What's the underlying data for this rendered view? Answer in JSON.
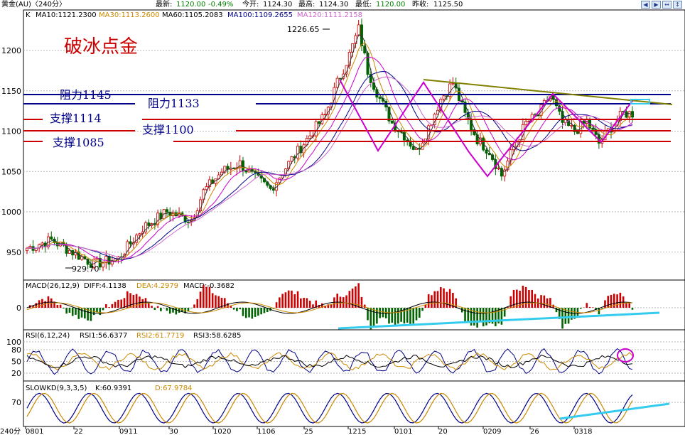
{
  "header": {
    "symbol": "黄金(AU)〈240分〉",
    "latest_label": "最新:",
    "latest_value": "1120.00",
    "change": "-0.49%",
    "open_label": "今开:",
    "open_value": "1124.30",
    "high_label": "最高:",
    "high_value": "1124.30",
    "low_label": "最低:",
    "low_value": "1120.00",
    "prev_label": "昨收:",
    "prev_value": "1125.50"
  },
  "indicators": {
    "k": "K",
    "ma10": "MA10:1121.2300",
    "ma30": "MA30:1113.2600",
    "ma60": "MA60:1105.2083",
    "ma100": "MA100:1109.2655",
    "ma120": "MA120:1111.2158",
    "macd_label": "MACD(26,12,9)",
    "diff": "DIFF:4.1138",
    "dea": "DEA:4.2979",
    "macd_val": "MACD:-0.3682",
    "rsi_label": "RSI(6,12,24)",
    "rsi1": "RSI1:56.6377",
    "rsi2": "RSI2:61.7719",
    "rsi3": "RSI3:58.6285",
    "kd_label": "SLOWKD(9,3,3,5)",
    "kd_k": "K:60.9391",
    "kd_d": "D:67.9784"
  },
  "annotations": {
    "title": "破冰点金",
    "res1145": "阻力1145",
    "res1133": "阻力1133",
    "sup1114": "支撑1114",
    "sup1100": "支撑1100",
    "sup1085": "支撑1085",
    "peak": "1226.65",
    "trough": "929.70"
  },
  "colors": {
    "resistance": "#00008b",
    "support": "#cc0000",
    "candle_up": "#cc0000",
    "candle_down": "#006400",
    "ma10": "#333333",
    "ma30": "#cc8800",
    "ma60": "#cc00cc",
    "ma100": "#000088",
    "ma120": "#cc66cc",
    "pattern": "#cc00cc",
    "trend_top": "#808000",
    "trend_cyan": "#33ccee"
  },
  "chart_data": [
    {
      "type": "candlestick",
      "ylim": [
        920,
        1235
      ],
      "y_ticks": [
        "1200",
        "1150",
        "1100",
        "1050",
        "1000",
        "950"
      ],
      "x_ticks": [
        "0801",
        "22",
        "0911",
        "30",
        "1020",
        "1106",
        "25",
        "1215",
        "0101",
        "20",
        "0209",
        "26",
        "0318"
      ],
      "x_label": "240分",
      "close_path": [
        [
          0,
          955
        ],
        [
          8,
          965
        ],
        [
          16,
          948
        ],
        [
          22,
          935
        ],
        [
          30,
          942
        ],
        [
          38,
          980
        ],
        [
          46,
          1000
        ],
        [
          54,
          990
        ],
        [
          58,
          1025
        ],
        [
          64,
          1050
        ],
        [
          70,
          1060
        ],
        [
          74,
          1045
        ],
        [
          80,
          1028
        ],
        [
          86,
          1060
        ],
        [
          92,
          1090
        ],
        [
          98,
          1120
        ],
        [
          102,
          1160
        ],
        [
          106,
          1195
        ],
        [
          109,
          1226.65
        ],
        [
          112,
          1175
        ],
        [
          116,
          1140
        ],
        [
          120,
          1110
        ],
        [
          124,
          1095
        ],
        [
          128,
          1075
        ],
        [
          132,
          1105
        ],
        [
          136,
          1140
        ],
        [
          140,
          1160
        ],
        [
          144,
          1120
        ],
        [
          148,
          1090
        ],
        [
          152,
          1075
        ],
        [
          156,
          1045
        ],
        [
          160,
          1080
        ],
        [
          164,
          1110
        ],
        [
          168,
          1120
        ],
        [
          172,
          1145
        ],
        [
          176,
          1110
        ],
        [
          180,
          1100
        ],
        [
          184,
          1112
        ],
        [
          188,
          1085
        ],
        [
          192,
          1105
        ],
        [
          196,
          1122
        ]
      ],
      "support_resistance": [
        {
          "label": "阻力1145",
          "value": 1145
        },
        {
          "label": "阻力1133",
          "value": 1133
        },
        {
          "label": "支撑1114",
          "value": 1114
        },
        {
          "label": "支撑1100",
          "value": 1100
        },
        {
          "label": "支撑1085",
          "value": 1085
        }
      ]
    },
    {
      "type": "bar",
      "name": "MACD",
      "y_ticks": [
        "0"
      ]
    },
    {
      "type": "line",
      "name": "RSI",
      "y_ticks": [
        "100",
        "80",
        "50",
        "20"
      ]
    },
    {
      "type": "line",
      "name": "SLOWKD",
      "y_ticks": [
        "70"
      ]
    }
  ]
}
